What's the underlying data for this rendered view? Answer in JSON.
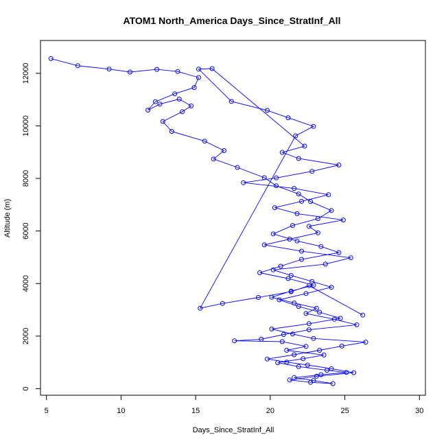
{
  "chart_data": {
    "type": "scatter",
    "title": "ATOM1 North_America Days_Since_StratInf_All",
    "xlabel": "Days_Since_StratInf_All",
    "ylabel": "Altitude (m)",
    "xlim": [
      4.6,
      30.4
    ],
    "ylim": [
      -250,
      13250
    ],
    "xticks": [
      5,
      10,
      15,
      20,
      25,
      30
    ],
    "yticks": [
      0,
      2000,
      4000,
      6000,
      8000,
      10000,
      12000
    ],
    "grid": false,
    "legend": "none",
    "marker": "open-circle",
    "connected": true,
    "color": "#0000ff",
    "series": [
      {
        "x": [
          5.3,
          7.1,
          9.2,
          10.6,
          12.4,
          13.8,
          15.2,
          14.9,
          13.6,
          12.3,
          11.8,
          12.6,
          13.9,
          14.7,
          14.1,
          12.8,
          13.4,
          15.6,
          16.9,
          16.2,
          17.8,
          19.6,
          20.4,
          21.9,
          22.7,
          24.1,
          23.2,
          21.5,
          20.2,
          21.8,
          23.4,
          24.6,
          22.1,
          20.7,
          19.3,
          21.2,
          22.9,
          21.4,
          20.1,
          21.6,
          23.1,
          22.4,
          24.3,
          25.8,
          22.6,
          20.9,
          19.4,
          17.6,
          20.8,
          22.4,
          21.1,
          23.6,
          22.2,
          20.5,
          21.9,
          23.8,
          25.1,
          23.4,
          21.6,
          22.9,
          24.2,
          22.7,
          21.3,
          23.1,
          25.6,
          24.1,
          22.5,
          21.1,
          19.8,
          21.6,
          23.3,
          24.8,
          26.4,
          22.9,
          21.5,
          20.1,
          22.6,
          24.7,
          23.3,
          21.9,
          20.6,
          22.4,
          24.1,
          22.8,
          21.4,
          20.2,
          23.7,
          25.4,
          22.1,
          19.6,
          21.3,
          23.2,
          22.6,
          24.9,
          21.8,
          20.3,
          22.1,
          23.9,
          21.6,
          18.2,
          20.4,
          22.8,
          24.6,
          21.9,
          20.8,
          22.3,
          16.1,
          15.2,
          17.4,
          19.8,
          21.2,
          22.9,
          21.7,
          15.3,
          16.8,
          19.2,
          21.4,
          22.6,
          26.2
        ],
        "y": [
          12560,
          12290,
          12160,
          12050,
          12150,
          12070,
          11840,
          11460,
          11220,
          10920,
          10600,
          10830,
          11020,
          10760,
          10540,
          10170,
          9790,
          9420,
          9060,
          8740,
          8420,
          8030,
          7720,
          7410,
          7120,
          6780,
          6470,
          6210,
          5890,
          5620,
          5410,
          5180,
          4920,
          4660,
          4410,
          4190,
          3940,
          3710,
          3480,
          3260,
          3060,
          2860,
          2640,
          2430,
          2240,
          2060,
          1880,
          1820,
          1790,
          1610,
          1460,
          1280,
          1140,
          990,
          840,
          700,
          620,
          530,
          420,
          310,
          190,
          240,
          330,
          470,
          610,
          760,
          900,
          1010,
          1130,
          1290,
          1460,
          1620,
          1770,
          1910,
          2080,
          2270,
          2470,
          2680,
          2910,
          3130,
          3380,
          3620,
          3860,
          4080,
          4310,
          4520,
          4740,
          4980,
          5230,
          5470,
          5690,
          5930,
          6180,
          6420,
          6660,
          6890,
          7130,
          7380,
          7620,
          7840,
          8020,
          8270,
          8510,
          8760,
          8990,
          9230,
          12180,
          12160,
          10930,
          10590,
          10310,
          9980,
          9620,
          3060,
          3240,
          3470,
          3690,
          3920,
          2800
        ]
      }
    ]
  }
}
